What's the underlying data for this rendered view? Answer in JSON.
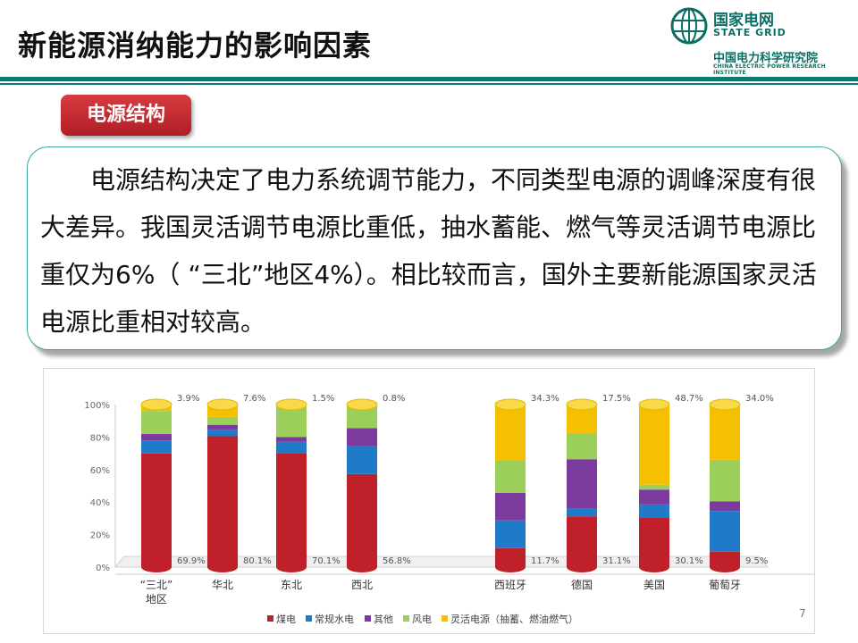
{
  "header": {
    "title": "新能源消纳能力的影响因素"
  },
  "logo": {
    "line1": "国家电网",
    "line2": "STATE GRID",
    "line3": "中国电力科学研究院",
    "line4": "CHINA ELECTRIC POWER RESEARCH INSTITUTE"
  },
  "section_tag": "电源结构",
  "body_text": "电源结构决定了电力系统调节能力，不同类型电源的调峰深度有很大差异。我国灵活调节电源比重低，抽水蓄能、燃气等灵活调节电源比重仅为6%（ “三北”地区4%）。相比较而言，国外主要新能源国家灵活电源比重相对较高。",
  "page_number": "7",
  "chart_data": {
    "type": "bar",
    "stacked": true,
    "categories": [
      "“三北”\n地区",
      "华北",
      "东北",
      "西北",
      "西班牙",
      "德国",
      "美国",
      "葡萄牙"
    ],
    "y_ticks": [
      "0%",
      "20%",
      "40%",
      "60%",
      "80%",
      "100%"
    ],
    "ylim": [
      0,
      100
    ],
    "series": [
      {
        "name": "煤电",
        "color": "#c0202a",
        "values": [
          69.9,
          80.1,
          70.1,
          56.8,
          11.7,
          31.1,
          30.1,
          9.5
        ]
      },
      {
        "name": "常规水电",
        "color": "#1f7bc8",
        "values": [
          8,
          4,
          7,
          17,
          17,
          5,
          8,
          25
        ]
      },
      {
        "name": "其他",
        "color": "#7a3a9e",
        "values": [
          4,
          3,
          3,
          11,
          17,
          30,
          9,
          6
        ]
      },
      {
        "name": "风电",
        "color": "#9bcf5a",
        "values": [
          14.2,
          4.8,
          18.4,
          13.6,
          20,
          16,
          3,
          25.5
        ]
      },
      {
        "name": "灵活电源（抽蓄、燃油燃气）",
        "color": "#f5c000",
        "values": [
          3.9,
          7.6,
          1.5,
          0.8,
          34.3,
          17.5,
          48.7,
          34.0
        ]
      }
    ],
    "top_labels": [
      "3.9%",
      "7.6%",
      "1.5%",
      "0.8%",
      "34.3%",
      "17.5%",
      "48.7%",
      "34.0%"
    ],
    "bottom_labels": [
      "69.9%",
      "80.1%",
      "70.1%",
      "56.8%",
      "11.7%",
      "31.1%",
      "30.1%",
      "9.5%"
    ]
  }
}
